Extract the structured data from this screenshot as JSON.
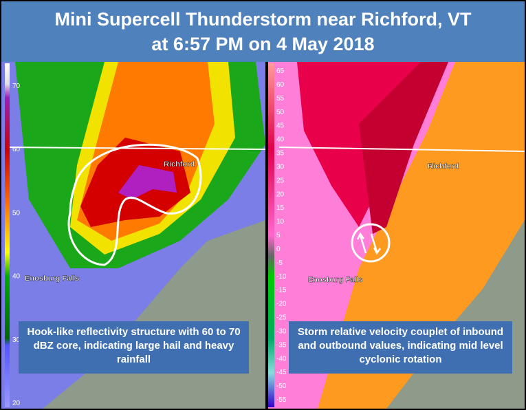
{
  "header": {
    "title_lines": [
      "Mini Supercell Thunderstorm near Richford, VT",
      "at 6:57 PM on 4 May 2018"
    ]
  },
  "left_panel": {
    "scale_labels": [
      70,
      60,
      50,
      40,
      30,
      20
    ],
    "places": [
      "Richford",
      "Enosburg Falls"
    ],
    "caption": "Hook-like reflectivity structure with 60 to 70 dBZ core, indicating large hail and heavy rainfall"
  },
  "right_panel": {
    "scale_labels": [
      65,
      60,
      55,
      50,
      45,
      40,
      35,
      30,
      25,
      20,
      15,
      10,
      5,
      0,
      -5,
      -10,
      -15,
      -20,
      -25,
      -30,
      -35,
      -40,
      -45,
      -50,
      -55
    ],
    "places": [
      "Richford",
      "Enosburg Falls"
    ],
    "caption": "Storm relative velocity couplet of inbound and outbound values, indicating mid level cyclonic rotation"
  }
}
